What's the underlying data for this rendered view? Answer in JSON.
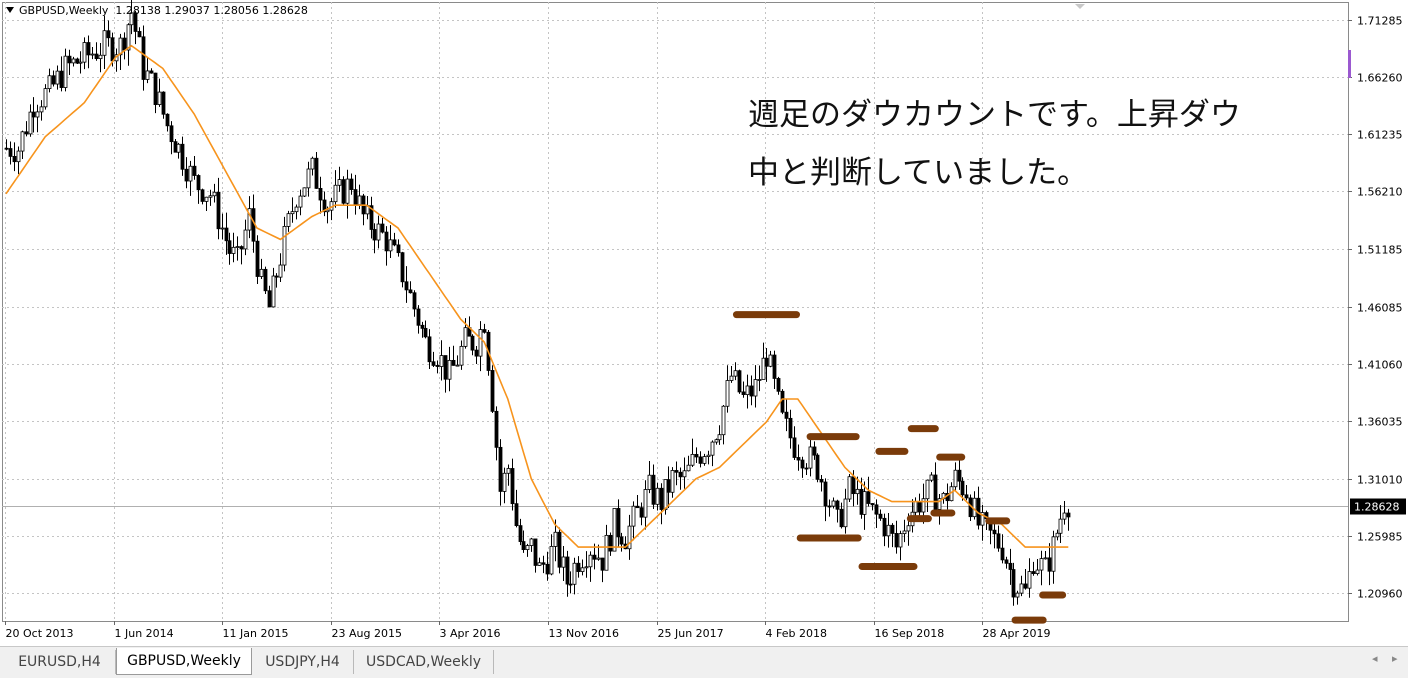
{
  "header": {
    "symbol": "GBPUSD,Weekly",
    "ohlc": "1.28138 1.29037 1.28056 1.28628"
  },
  "annotation": {
    "line1": "週足のダウカウントです。上昇ダウ",
    "line2": "中と判断していました。"
  },
  "tabs": [
    {
      "label": "EURUSD,H4",
      "active": false
    },
    {
      "label": "GBPUSD,Weekly",
      "active": true
    },
    {
      "label": "USDJPY,H4",
      "active": false
    },
    {
      "label": "USDCAD,Weekly",
      "active": false
    }
  ],
  "colors": {
    "ma": "#f7941d",
    "marker": "#7a3b0a",
    "grid": "#c4c4c4",
    "candle": "#000000",
    "current_price_bg": "#000000"
  },
  "chart_data": {
    "type": "candlestick",
    "symbol": "GBPUSD",
    "timeframe": "Weekly",
    "ylim": [
      1.1852,
      1.7283
    ],
    "y_ticks": [
      "1.71285",
      "1.66260",
      "1.61235",
      "1.56210",
      "1.51185",
      "1.46085",
      "1.41060",
      "1.36035",
      "1.31010",
      "1.25985",
      "1.20960"
    ],
    "x_ticks": [
      "20 Oct 2013",
      "1 Jun 2014",
      "11 Jan 2015",
      "23 Aug 2015",
      "3 Apr 2016",
      "13 Nov 2016",
      "25 Jun 2017",
      "4 Feb 2018",
      "16 Sep 2018",
      "28 Apr 2019"
    ],
    "current_price": "1.28628",
    "close_path": [
      [
        0,
        1.6
      ],
      [
        3,
        1.6
      ],
      [
        7,
        1.64
      ],
      [
        11,
        1.65
      ],
      [
        15,
        1.67
      ],
      [
        20,
        1.68
      ],
      [
        25,
        1.69
      ],
      [
        29,
        1.69
      ],
      [
        32,
        1.72
      ],
      [
        35,
        1.67
      ],
      [
        38,
        1.65
      ],
      [
        41,
        1.62
      ],
      [
        44,
        1.6
      ],
      [
        48,
        1.57
      ],
      [
        52,
        1.56
      ],
      [
        55,
        1.53
      ],
      [
        57,
        1.51
      ],
      [
        59,
        1.5
      ],
      [
        62,
        1.54
      ],
      [
        65,
        1.48
      ],
      [
        67,
        1.46
      ],
      [
        71,
        1.52
      ],
      [
        74,
        1.56
      ],
      [
        78,
        1.58
      ],
      [
        82,
        1.55
      ],
      [
        85,
        1.56
      ],
      [
        88,
        1.57
      ],
      [
        91,
        1.54
      ],
      [
        94,
        1.53
      ],
      [
        97,
        1.52
      ],
      [
        101,
        1.49
      ],
      [
        104,
        1.46
      ],
      [
        107,
        1.43
      ],
      [
        110,
        1.42
      ],
      [
        113,
        1.4
      ],
      [
        117,
        1.43
      ],
      [
        120,
        1.43
      ],
      [
        122,
        1.45
      ],
      [
        124,
        1.38
      ],
      [
        126,
        1.3
      ],
      [
        128,
        1.32
      ],
      [
        130,
        1.27
      ],
      [
        132,
        1.24
      ],
      [
        134,
        1.25
      ],
      [
        136,
        1.23
      ],
      [
        138,
        1.24
      ],
      [
        140,
        1.25
      ],
      [
        143,
        1.22
      ],
      [
        146,
        1.24
      ],
      [
        149,
        1.25
      ],
      [
        152,
        1.24
      ],
      [
        155,
        1.27
      ],
      [
        158,
        1.26
      ],
      [
        161,
        1.28
      ],
      [
        164,
        1.3
      ],
      [
        167,
        1.29
      ],
      [
        170,
        1.31
      ],
      [
        173,
        1.31
      ],
      [
        176,
        1.33
      ],
      [
        179,
        1.34
      ],
      [
        182,
        1.36
      ],
      [
        185,
        1.4
      ],
      [
        188,
        1.38
      ],
      [
        191,
        1.39
      ],
      [
        194,
        1.42
      ],
      [
        196,
        1.39
      ],
      [
        198,
        1.36
      ],
      [
        201,
        1.34
      ],
      [
        204,
        1.33
      ],
      [
        207,
        1.32
      ],
      [
        210,
        1.29
      ],
      [
        212,
        1.27
      ],
      [
        215,
        1.3
      ],
      [
        218,
        1.29
      ],
      [
        221,
        1.28
      ],
      [
        224,
        1.27
      ],
      [
        227,
        1.25
      ],
      [
        230,
        1.28
      ],
      [
        233,
        1.29
      ],
      [
        236,
        1.3
      ],
      [
        239,
        1.29
      ],
      [
        242,
        1.31
      ],
      [
        245,
        1.3
      ],
      [
        248,
        1.27
      ],
      [
        251,
        1.26
      ],
      [
        254,
        1.25
      ],
      [
        257,
        1.22
      ],
      [
        260,
        1.21
      ],
      [
        262,
        1.24
      ],
      [
        265,
        1.23
      ],
      [
        267,
        1.25
      ],
      [
        270,
        1.29
      ],
      [
        271,
        1.29
      ]
    ],
    "moving_average": [
      [
        0,
        1.56
      ],
      [
        10,
        1.61
      ],
      [
        20,
        1.64
      ],
      [
        28,
        1.68
      ],
      [
        32,
        1.69
      ],
      [
        40,
        1.67
      ],
      [
        48,
        1.63
      ],
      [
        56,
        1.58
      ],
      [
        64,
        1.53
      ],
      [
        70,
        1.52
      ],
      [
        78,
        1.54
      ],
      [
        84,
        1.55
      ],
      [
        92,
        1.55
      ],
      [
        100,
        1.53
      ],
      [
        108,
        1.49
      ],
      [
        116,
        1.45
      ],
      [
        122,
        1.43
      ],
      [
        128,
        1.38
      ],
      [
        134,
        1.31
      ],
      [
        140,
        1.27
      ],
      [
        146,
        1.25
      ],
      [
        152,
        1.25
      ],
      [
        158,
        1.25
      ],
      [
        164,
        1.27
      ],
      [
        170,
        1.29
      ],
      [
        176,
        1.31
      ],
      [
        182,
        1.32
      ],
      [
        188,
        1.34
      ],
      [
        194,
        1.36
      ],
      [
        198,
        1.38
      ],
      [
        202,
        1.38
      ],
      [
        208,
        1.35
      ],
      [
        214,
        1.32
      ],
      [
        220,
        1.3
      ],
      [
        226,
        1.29
      ],
      [
        232,
        1.29
      ],
      [
        238,
        1.29
      ],
      [
        242,
        1.3
      ],
      [
        248,
        1.28
      ],
      [
        254,
        1.27
      ],
      [
        260,
        1.25
      ],
      [
        264,
        1.25
      ],
      [
        268,
        1.25
      ]
    ],
    "swing_markers": [
      [
        194,
        1.454
      ],
      [
        211,
        1.347
      ],
      [
        226,
        1.334
      ],
      [
        234,
        1.354
      ],
      [
        241,
        1.329
      ],
      [
        210,
        1.258
      ],
      [
        225,
        1.233
      ],
      [
        233,
        1.275
      ],
      [
        239,
        1.28
      ],
      [
        253,
        1.273
      ],
      [
        261,
        1.186
      ],
      [
        267,
        1.208
      ]
    ]
  }
}
